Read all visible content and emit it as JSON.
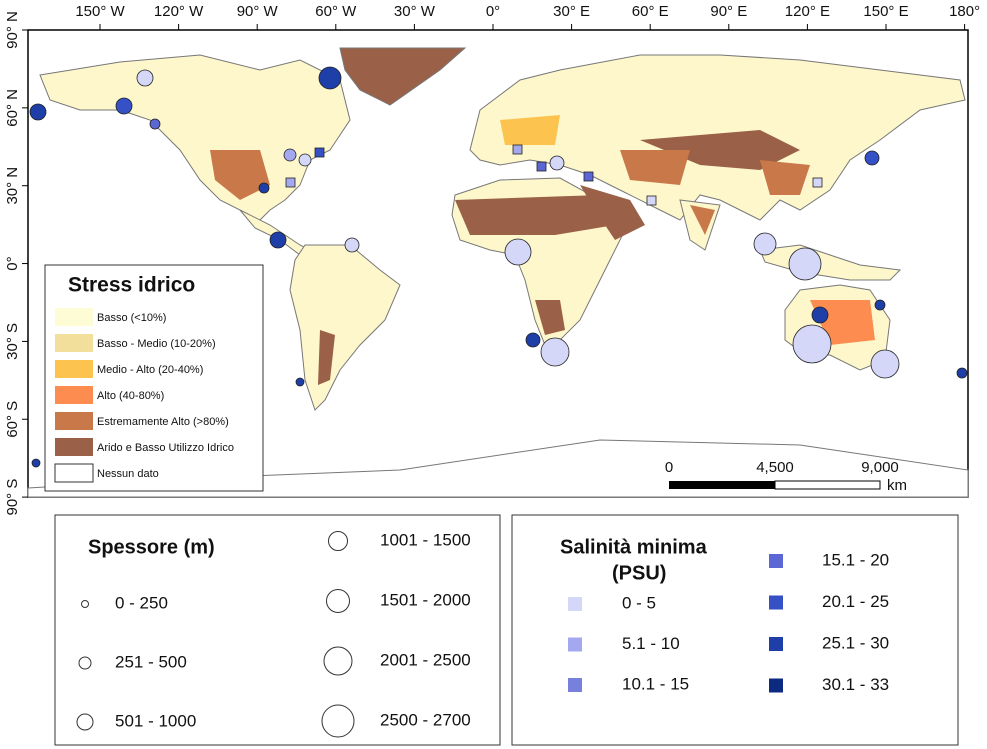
{
  "map": {
    "lon_ticks": [
      "150° W",
      "120° W",
      "90° W",
      "60° W",
      "30° W",
      "0°",
      "30° E",
      "60° E",
      "90° E",
      "120° E",
      "150° E",
      "180°"
    ],
    "lat_ticks": [
      "90° N",
      "60° N",
      "30° N",
      "0°",
      "30° S",
      "60° S",
      "90° S"
    ]
  },
  "stress_legend": {
    "title": "Stress idrico",
    "items": [
      {
        "label": "Basso (<10%)",
        "color": "#fefcd4"
      },
      {
        "label": "Basso - Medio (10-20%)",
        "color": "#f1df9b"
      },
      {
        "label": "Medio - Alto (20-40%)",
        "color": "#fcc34f"
      },
      {
        "label": "Alto (40-80%)",
        "color": "#fd8c50"
      },
      {
        "label": "Estremamente Alto (>80%)",
        "color": "#c9784a"
      },
      {
        "label": "Arido e Basso Utilizzo Idrico",
        "color": "#9a6148"
      },
      {
        "label": "Nessun dato",
        "color": "#ffffff"
      }
    ]
  },
  "scale_bar": {
    "labels": [
      "0",
      "4,500",
      "9,000"
    ],
    "unit": "km"
  },
  "thickness_legend": {
    "title": "Spessore (m)",
    "items": [
      "0 - 250",
      "251 - 500",
      "501 - 1000",
      "1001 - 1500",
      "1501 - 2000",
      "2001 - 2500",
      "2500 - 2700"
    ]
  },
  "salinity_legend": {
    "title_lines": [
      "Salinità minima",
      "(PSU)"
    ],
    "items": [
      {
        "label": "0 - 5",
        "color": "#d5d7f9"
      },
      {
        "label": "5.1 - 10",
        "color": "#a4a8ee"
      },
      {
        "label": "10.1 - 15",
        "color": "#7880dd"
      },
      {
        "label": "15.1 - 20",
        "color": "#5a67d4"
      },
      {
        "label": "20.1 - 25",
        "color": "#3650c5"
      },
      {
        "label": "25.1 - 30",
        "color": "#1e3ea8"
      },
      {
        "label": "30.1 - 33",
        "color": "#0c2a80"
      }
    ]
  }
}
